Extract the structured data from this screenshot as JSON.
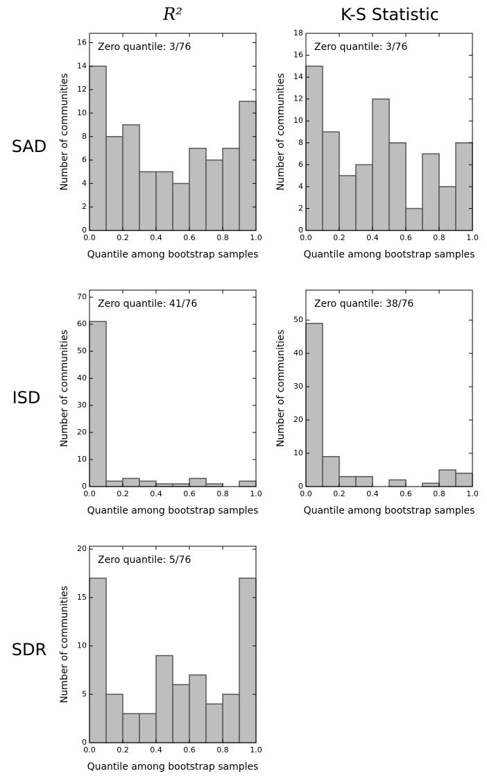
{
  "column_titles": [
    "R²",
    "K-S Statistic"
  ],
  "row_labels": [
    "SAD",
    "ISD",
    "SDR"
  ],
  "chart_data": [
    {
      "type": "histogram",
      "annotation": "Zero quantile: 3/76",
      "xlabel": "Quantile among bootstrap samples",
      "ylabel": "Number of communities",
      "bins": [
        0,
        0.1,
        0.2,
        0.3,
        0.4,
        0.5,
        0.6,
        0.7,
        0.8,
        0.9,
        1.0
      ],
      "values": [
        14,
        8,
        9,
        5,
        5,
        4,
        7,
        6,
        7,
        11
      ],
      "color": "#bebebe",
      "xlim": [
        0,
        1
      ],
      "ylim": [
        0,
        16.8
      ],
      "xticks": [
        {
          "value": 0,
          "label": "0.0"
        },
        {
          "value": 0.2,
          "label": "0.2"
        },
        {
          "value": 0.4,
          "label": "0.4"
        },
        {
          "value": 0.6,
          "label": "0.6"
        },
        {
          "value": 0.8,
          "label": "0.8"
        },
        {
          "value": 1,
          "label": "1.0"
        }
      ],
      "yticks": [
        0,
        2,
        4,
        6,
        8,
        10,
        12,
        14,
        16
      ]
    },
    {
      "type": "histogram",
      "annotation": "Zero quantile: 3/76",
      "xlabel": "Quantile among bootstrap samples",
      "ylabel": "Number of communities",
      "bins": [
        0,
        0.1,
        0.2,
        0.3,
        0.4,
        0.5,
        0.6,
        0.7,
        0.8,
        0.9,
        1.0
      ],
      "values": [
        15,
        9,
        5,
        6,
        12,
        8,
        2,
        7,
        4,
        8
      ],
      "color": "#bebebe",
      "xlim": [
        0,
        1
      ],
      "ylim": [
        0,
        18
      ],
      "xticks": [
        {
          "value": 0,
          "label": "0.0"
        },
        {
          "value": 0.2,
          "label": "0.2"
        },
        {
          "value": 0.4,
          "label": "0.4"
        },
        {
          "value": 0.6,
          "label": "0.6"
        },
        {
          "value": 0.8,
          "label": "0.8"
        },
        {
          "value": 1,
          "label": "1.0"
        }
      ],
      "yticks": [
        0,
        2,
        4,
        6,
        8,
        10,
        12,
        14,
        16,
        18
      ]
    },
    {
      "type": "histogram",
      "annotation": "Zero quantile: 41/76",
      "xlabel": "Quantile among bootstrap samples",
      "ylabel": "Number of communities",
      "bins": [
        0,
        0.1,
        0.2,
        0.3,
        0.4,
        0.5,
        0.6,
        0.7,
        0.8,
        0.9,
        1.0
      ],
      "values": [
        61,
        2,
        3,
        2,
        1,
        1,
        3,
        1,
        0,
        2
      ],
      "color": "#bebebe",
      "xlim": [
        0,
        1
      ],
      "ylim": [
        0,
        72.6
      ],
      "xticks": [
        {
          "value": 0,
          "label": "0.0"
        },
        {
          "value": 0.2,
          "label": "0.2"
        },
        {
          "value": 0.4,
          "label": "0.4"
        },
        {
          "value": 0.6,
          "label": "0.6"
        },
        {
          "value": 0.8,
          "label": "0.8"
        },
        {
          "value": 1,
          "label": "1.0"
        }
      ],
      "yticks": [
        0,
        10,
        20,
        30,
        40,
        50,
        60,
        70
      ]
    },
    {
      "type": "histogram",
      "annotation": "Zero quantile: 38/76",
      "xlabel": "Quantile among bootstrap samples",
      "ylabel": "Number of communities",
      "bins": [
        0,
        0.1,
        0.2,
        0.3,
        0.4,
        0.5,
        0.6,
        0.7,
        0.8,
        0.9,
        1.0
      ],
      "values": [
        49,
        9,
        3,
        3,
        0,
        2,
        0,
        1,
        5,
        4
      ],
      "color": "#bebebe",
      "xlim": [
        0,
        1
      ],
      "ylim": [
        0,
        59
      ],
      "xticks": [
        {
          "value": 0,
          "label": "0.0"
        },
        {
          "value": 0.2,
          "label": "0.2"
        },
        {
          "value": 0.4,
          "label": "0.4"
        },
        {
          "value": 0.6,
          "label": "0.6"
        },
        {
          "value": 0.8,
          "label": "0.8"
        },
        {
          "value": 1,
          "label": "1.0"
        }
      ],
      "yticks": [
        0,
        10,
        20,
        30,
        40,
        50
      ]
    },
    {
      "type": "histogram",
      "annotation": "Zero quantile: 5/76",
      "xlabel": "Quantile among bootstrap samples",
      "ylabel": "Number of communities",
      "bins": [
        0,
        0.1,
        0.2,
        0.3,
        0.4,
        0.5,
        0.6,
        0.7,
        0.8,
        0.9,
        1.0
      ],
      "values": [
        17,
        5,
        3,
        3,
        9,
        6,
        7,
        4,
        5,
        17
      ],
      "color": "#bebebe",
      "xlim": [
        0,
        1
      ],
      "ylim": [
        0,
        20.3
      ],
      "xticks": [
        {
          "value": 0,
          "label": "0.0"
        },
        {
          "value": 0.2,
          "label": "0.2"
        },
        {
          "value": 0.4,
          "label": "0.4"
        },
        {
          "value": 0.6,
          "label": "0.6"
        },
        {
          "value": 0.8,
          "label": "0.8"
        },
        {
          "value": 1,
          "label": "1.0"
        }
      ],
      "yticks": [
        0,
        5,
        10,
        15,
        20
      ]
    }
  ]
}
